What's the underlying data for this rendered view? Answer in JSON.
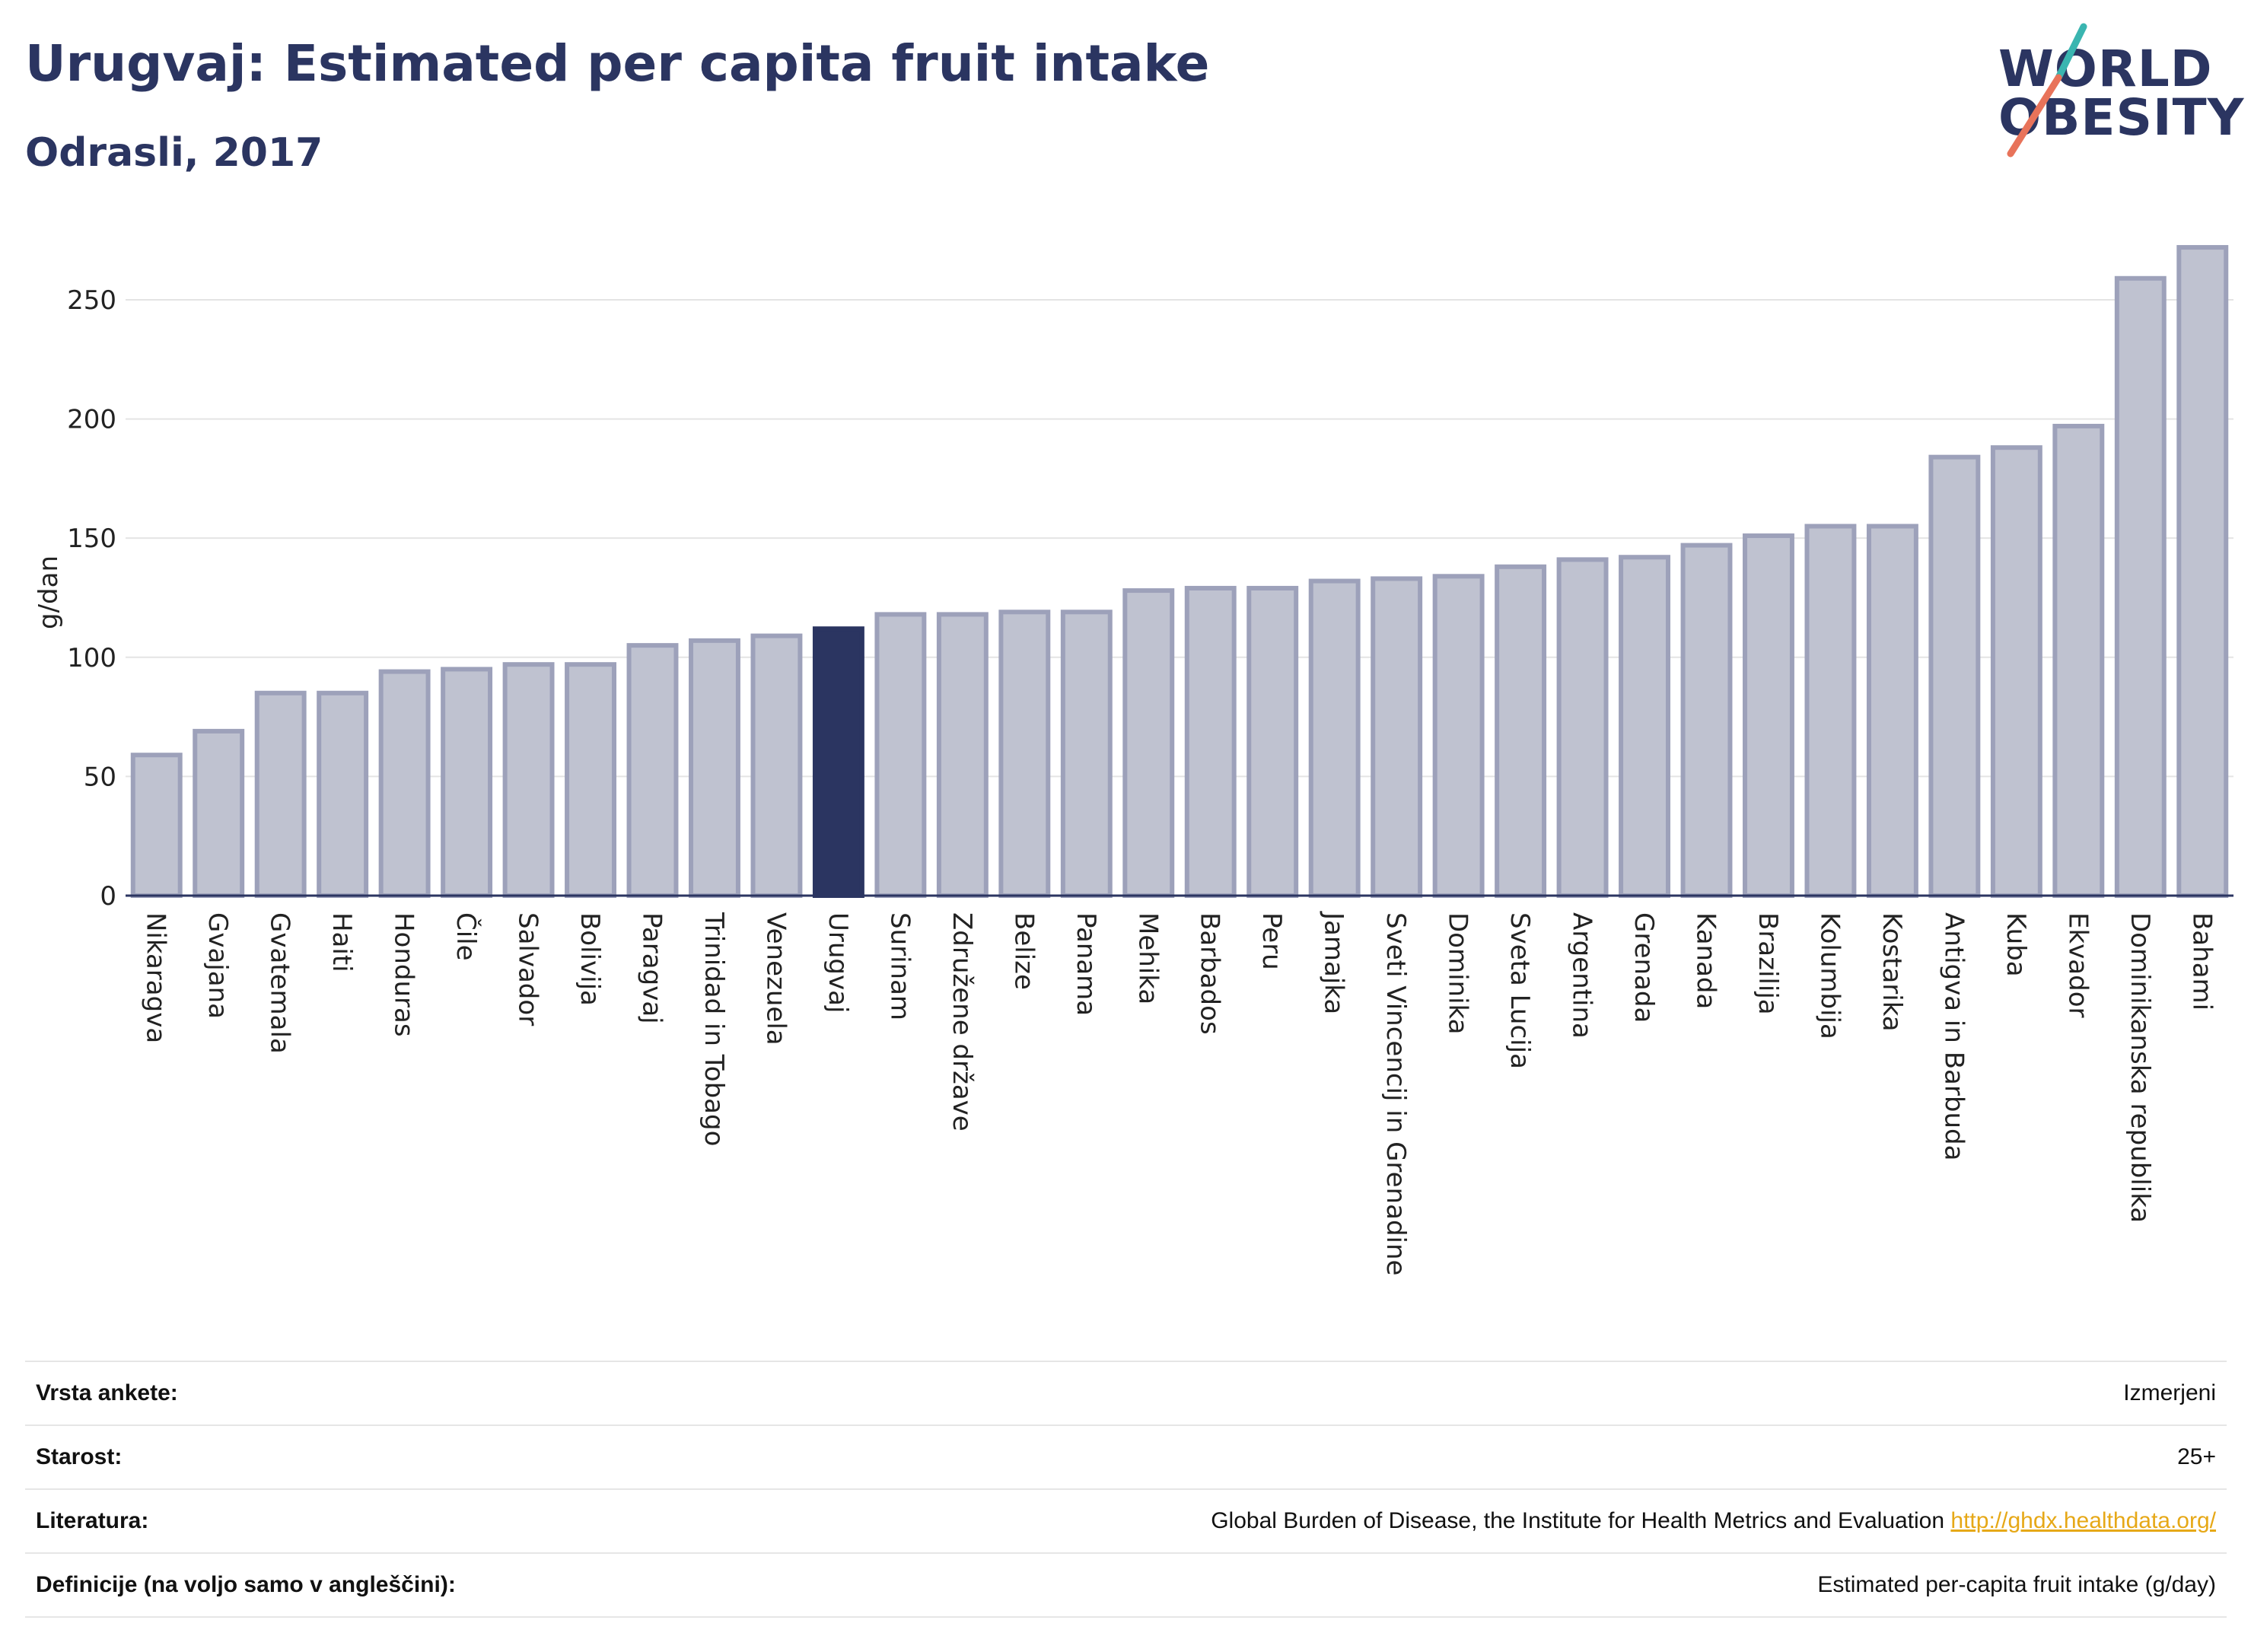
{
  "header": {
    "title": "Urugvaj: Estimated per capita fruit intake",
    "subtitle": "Odrasli, 2017"
  },
  "logo": {
    "line1": "WORLD",
    "line2": "OBESITY",
    "colors": {
      "teal": "#3ab5b0",
      "coral": "#e8735a",
      "navy": "#2b3561"
    }
  },
  "chart_data": {
    "type": "bar",
    "ylabel": "g/dan",
    "ylim": [
      0,
      280
    ],
    "yticks": [
      0,
      50,
      100,
      150,
      200,
      250
    ],
    "grid": true,
    "highlight": "Urugvaj",
    "colors": {
      "bar": "#bfc2d0",
      "bar_border": "#9da1ba",
      "highlight": "#2b3561"
    },
    "categories": [
      "Nikaragva",
      "Gvajana",
      "Gvatemala",
      "Haiti",
      "Honduras",
      "Čile",
      "Salvador",
      "Bolivija",
      "Paragvaj",
      "Trinidad in Tobago",
      "Venezuela",
      "Urugvaj",
      "Surinam",
      "Združene države",
      "Belize",
      "Panama",
      "Mehika",
      "Barbados",
      "Peru",
      "Jamajka",
      "Sveti Vincencij in Grenadine",
      "Dominika",
      "Sveta Lucija",
      "Argentina",
      "Grenada",
      "Kanada",
      "Brazilija",
      "Kolumbija",
      "Kostarika",
      "Antigva in Barbuda",
      "Kuba",
      "Ekvador",
      "Dominikanska republika",
      "Bahami"
    ],
    "values": [
      59,
      69,
      85,
      85,
      94,
      95,
      97,
      97,
      105,
      107,
      109,
      112,
      118,
      118,
      119,
      119,
      128,
      129,
      129,
      132,
      133,
      134,
      138,
      141,
      142,
      147,
      151,
      155,
      155,
      184,
      188,
      197,
      259,
      272
    ]
  },
  "info": [
    {
      "label": "Vrsta ankete:",
      "value": "Izmerjeni"
    },
    {
      "label": "Starost:",
      "value": "25+"
    },
    {
      "label": "Literatura:",
      "value": "Global Burden of Disease, the Institute for Health Metrics and Evaluation",
      "link": "http://ghdx.healthdata.org/"
    },
    {
      "label": "Definicije (na voljo samo v angleščini):",
      "value": "Estimated per-capita fruit intake (g/day)"
    }
  ]
}
